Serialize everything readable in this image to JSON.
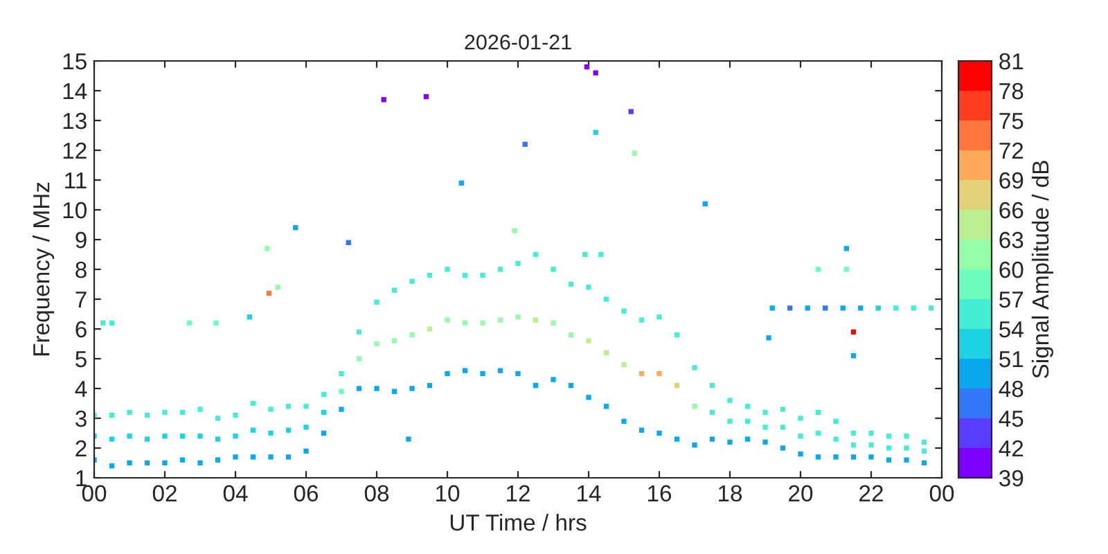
{
  "chart_data": {
    "type": "scatter",
    "title": "2026-01-21",
    "xlabel": "UT Time / hrs",
    "ylabel": "Frequency / MHz",
    "clabel": "Signal Amplitude / dB",
    "xlim": [
      0,
      24
    ],
    "xticks": [
      {
        "value": 0,
        "label": "00"
      },
      {
        "value": 2,
        "label": "02"
      },
      {
        "value": 4,
        "label": "04"
      },
      {
        "value": 6,
        "label": "06"
      },
      {
        "value": 8,
        "label": "08"
      },
      {
        "value": 10,
        "label": "10"
      },
      {
        "value": 12,
        "label": "12"
      },
      {
        "value": 14,
        "label": "14"
      },
      {
        "value": 16,
        "label": "16"
      },
      {
        "value": 18,
        "label": "18"
      },
      {
        "value": 20,
        "label": "20"
      },
      {
        "value": 22,
        "label": "22"
      },
      {
        "value": 24,
        "label": "00"
      }
    ],
    "ylim": [
      1,
      15
    ],
    "yticks": [
      1,
      2,
      3,
      4,
      5,
      6,
      7,
      8,
      9,
      10,
      11,
      12,
      13,
      14,
      15
    ],
    "clim": [
      39,
      81
    ],
    "cticks": [
      39,
      42,
      45,
      48,
      51,
      54,
      57,
      60,
      63,
      66,
      69,
      72,
      75,
      78,
      81
    ],
    "grid": false,
    "marker": "square",
    "series": [
      {
        "x": [
          0,
          0,
          0,
          0.5,
          0.5,
          0.5,
          1,
          1,
          1,
          1.5,
          1.5,
          1.5,
          2,
          2,
          2,
          2.5,
          2.5,
          2.5,
          3,
          3,
          3,
          3.5,
          3.5,
          3.5,
          4,
          4,
          4,
          4.5,
          4.5,
          4.5,
          5,
          5,
          5,
          5.5,
          5.5,
          5.5,
          6,
          6,
          6,
          6.5,
          6.5,
          6.5,
          7,
          7,
          7,
          7.5,
          7.5,
          7.5,
          8,
          8,
          8,
          8.5,
          8.5,
          8.5,
          9,
          9,
          9,
          9.5,
          9.5,
          9.5,
          10,
          10,
          10,
          10.5,
          10.5,
          10.5,
          11,
          11,
          11,
          11.5,
          11.5,
          11.5,
          12,
          12,
          12,
          12.5,
          12.5,
          12.5,
          13,
          13,
          13,
          13.5,
          13.5,
          13.5,
          14,
          14,
          14,
          14.5,
          14.5,
          14.5,
          15,
          15,
          15,
          15.5,
          15.5,
          15.5,
          16,
          16,
          16,
          16.5,
          16.5,
          16.5,
          17,
          17,
          17,
          17.5,
          17.5,
          17.5,
          18,
          18,
          18,
          18.5,
          18.5,
          18.5,
          19,
          19,
          19,
          19.5,
          19.5,
          19.5,
          20,
          20,
          20,
          20.5,
          20.5,
          20.5,
          21,
          21,
          21,
          21.5,
          21.5,
          21.5,
          22,
          22,
          22,
          22.5,
          22.5,
          22.5,
          23,
          23,
          23,
          23.5,
          23.5,
          23.5,
          8.2,
          9.4,
          13.95,
          14.2,
          15.2,
          12.2,
          14.2,
          15.3,
          10.4,
          17.3,
          5.7,
          7.2,
          4.9,
          4.95,
          5.2,
          4.4,
          0.25,
          0.5,
          2.7,
          3.45,
          11.9,
          13.9,
          14.35,
          21.3,
          20.5,
          21.3,
          21.5,
          19.1,
          21.5,
          8.9,
          19.2,
          19.7,
          20.2,
          20.7,
          21.2,
          21.7,
          22.2,
          22.7,
          23.2,
          23.7
        ],
        "values": [
          1.6,
          2.4,
          3.1,
          1.4,
          2.3,
          3.1,
          1.5,
          2.4,
          3.2,
          1.5,
          2.3,
          3.1,
          1.5,
          2.4,
          3.2,
          1.6,
          2.4,
          3.2,
          1.5,
          2.4,
          3.3,
          1.6,
          2.3,
          3.0,
          1.7,
          2.4,
          3.1,
          1.7,
          2.6,
          3.5,
          1.7,
          2.5,
          3.3,
          1.7,
          2.6,
          3.4,
          1.9,
          2.7,
          3.4,
          2.5,
          3.2,
          3.8,
          3.3,
          3.9,
          4.5,
          4.0,
          5.0,
          5.9,
          4.0,
          5.5,
          6.9,
          3.9,
          5.6,
          7.3,
          4.0,
          5.8,
          7.6,
          4.1,
          6.0,
          7.8,
          4.5,
          6.3,
          8.0,
          4.6,
          6.2,
          7.8,
          4.5,
          6.2,
          7.8,
          4.6,
          6.3,
          8.0,
          4.5,
          6.4,
          8.2,
          4.1,
          6.3,
          8.5,
          4.3,
          6.2,
          8.0,
          4.1,
          5.8,
          7.5,
          3.7,
          5.6,
          7.4,
          3.4,
          5.2,
          7.0,
          2.9,
          4.8,
          6.6,
          2.6,
          4.5,
          6.3,
          2.5,
          4.5,
          6.4,
          2.3,
          4.1,
          5.8,
          2.1,
          3.4,
          4.7,
          2.3,
          3.2,
          4.1,
          2.2,
          2.9,
          3.6,
          2.3,
          2.9,
          3.4,
          2.2,
          2.7,
          3.2,
          2.0,
          2.7,
          3.3,
          1.8,
          2.4,
          3.0,
          1.7,
          2.5,
          3.2,
          1.7,
          2.3,
          2.9,
          1.7,
          2.1,
          2.5,
          1.7,
          2.1,
          2.5,
          1.6,
          2.0,
          2.4,
          1.6,
          2.0,
          2.4,
          1.5,
          1.9,
          2.2,
          13.7,
          13.8,
          14.8,
          14.6,
          13.3,
          12.2,
          12.6,
          11.9,
          10.9,
          10.2,
          9.4,
          8.9,
          8.7,
          7.2,
          7.4,
          6.4,
          6.2,
          6.2,
          6.2,
          6.2,
          9.3,
          8.5,
          8.5,
          8.7,
          8.0,
          8.0,
          5.9,
          5.7,
          5.1,
          2.3,
          6.7,
          6.7,
          6.7,
          6.7,
          6.7,
          6.7,
          6.7,
          6.7,
          6.7,
          6.7
        ],
        "cvalues": [
          48,
          51,
          55,
          48,
          51,
          55,
          48,
          51,
          55,
          48,
          51,
          55,
          48,
          51,
          55,
          48,
          51,
          55,
          48,
          51,
          55,
          48,
          51,
          55,
          48,
          51,
          55,
          48,
          51,
          55,
          48,
          51,
          55,
          48,
          51,
          55,
          48,
          51,
          55,
          48,
          51,
          55,
          48,
          57,
          55,
          48,
          60,
          55,
          48,
          60,
          55,
          48,
          60,
          55,
          48,
          60,
          55,
          48,
          63,
          55,
          48,
          60,
          55,
          48,
          60,
          55,
          48,
          60,
          55,
          48,
          60,
          55,
          48,
          60,
          55,
          48,
          63,
          55,
          48,
          60,
          55,
          48,
          60,
          55,
          49,
          63,
          55,
          49,
          63,
          55,
          49,
          63,
          55,
          49,
          69,
          55,
          49,
          69,
          55,
          49,
          66,
          55,
          49,
          60,
          55,
          48,
          54,
          55,
          48,
          54,
          55,
          48,
          54,
          55,
          48,
          54,
          55,
          48,
          54,
          55,
          48,
          54,
          55,
          48,
          54,
          55,
          48,
          54,
          55,
          48,
          54,
          55,
          48,
          54,
          55,
          48,
          54,
          55,
          48,
          54,
          55,
          48,
          54,
          55,
          40,
          40,
          40,
          40,
          43,
          46,
          51,
          62,
          48,
          50,
          48,
          47,
          62,
          72,
          61,
          52,
          54,
          54,
          57,
          57,
          62,
          56,
          56,
          48,
          59,
          59,
          78,
          49,
          49,
          50,
          50,
          45,
          48,
          45,
          48,
          50,
          51,
          54,
          54,
          55
        ]
      }
    ]
  }
}
